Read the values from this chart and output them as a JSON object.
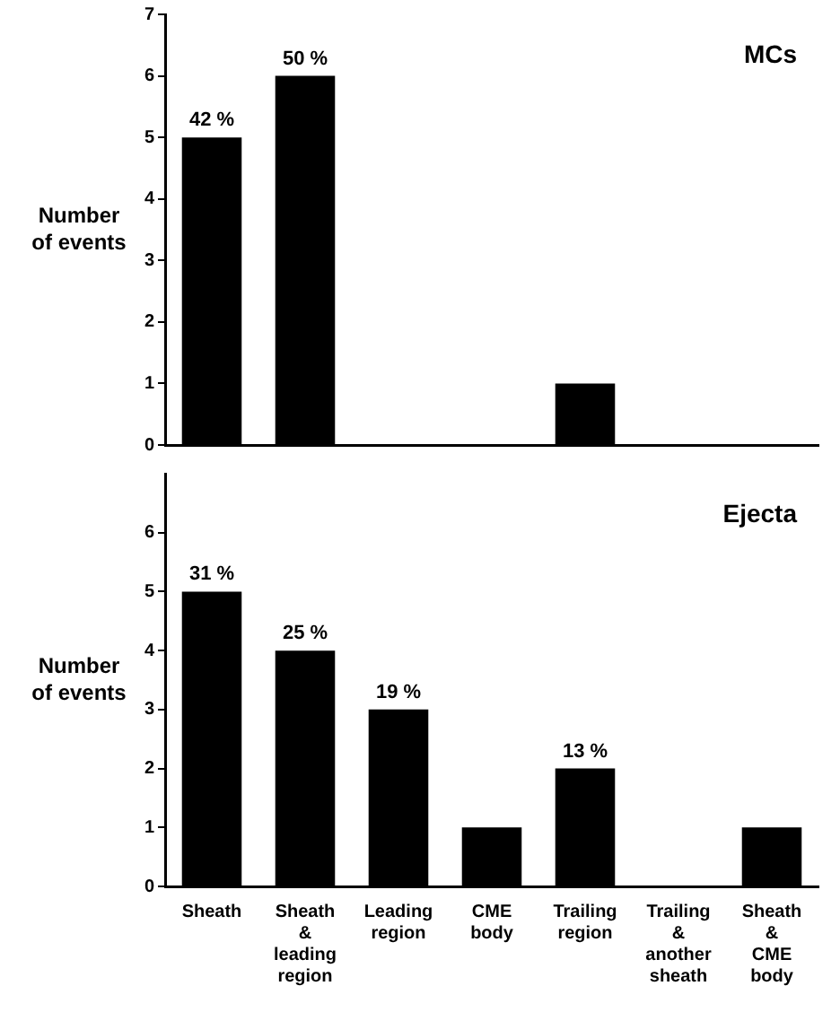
{
  "chart_data": [
    {
      "type": "bar",
      "ylabel": "Number of events",
      "categories": [
        "Sheath",
        "Sheath & leading region",
        "Leading region",
        "CME body",
        "Trailing region",
        "Trailing & another sheath",
        "Sheath & CME body"
      ],
      "series": [
        {
          "color": "#000000",
          "values": [
            5,
            6,
            0,
            0,
            1,
            0,
            0
          ]
        }
      ],
      "ylim": [
        0,
        7
      ],
      "yticks": [
        0,
        1,
        2,
        3,
        4,
        5,
        6,
        7
      ],
      "tick_labels": "y",
      "legend": false,
      "grid": false,
      "annotations": [
        "MCs",
        {
          "text": "42 %",
          "x": "Sheath",
          "y": 5
        },
        {
          "text": "50 %",
          "x": "Sheath & leading region",
          "y": 6
        }
      ]
    },
    {
      "type": "bar",
      "ylabel": "Number of events",
      "categories": [
        "Sheath",
        "Sheath & leading region",
        "Leading region",
        "CME body",
        "Trailing region",
        "Trailing & another sheath",
        "Sheath & CME body"
      ],
      "series": [
        {
          "color": "#000000",
          "values": [
            5,
            4,
            3,
            1,
            2,
            0,
            1
          ]
        }
      ],
      "ylim": [
        0,
        7
      ],
      "yticks": [
        0,
        1,
        2,
        3,
        4,
        5,
        6
      ],
      "legend": false,
      "grid": false,
      "annotations": [
        "Ejecta",
        {
          "text": "31 %",
          "x": "Sheath",
          "y": 5
        },
        {
          "text": "25 %",
          "x": "Sheath & leading region",
          "y": 4
        },
        {
          "text": "19 %",
          "x": "Leading region",
          "y": 3
        },
        {
          "text": "13 %",
          "x": "Trailing region",
          "y": 2
        }
      ]
    }
  ]
}
